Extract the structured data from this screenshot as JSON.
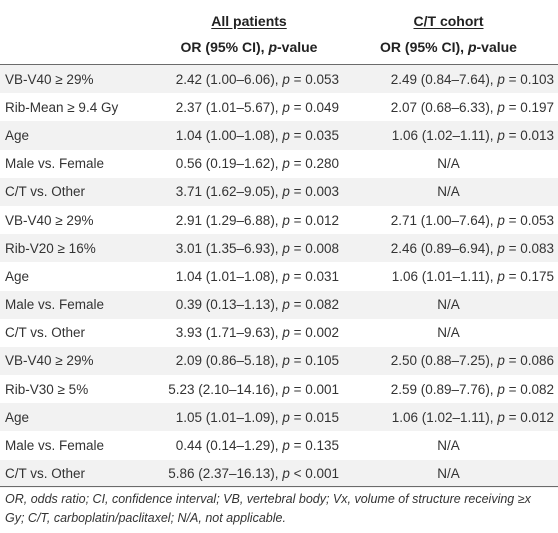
{
  "header": {
    "group1": "All patients",
    "group2": "C/T cohort",
    "col_label_prefix": "OR (95% CI), ",
    "col_label_pvalue": "p",
    "col_label_suffix": "-value"
  },
  "rows": [
    {
      "variable": "VB-V40 ≥ 29%",
      "all": "2.42 (1.00–6.06), p = 0.053",
      "ct": "2.49 (0.84–7.64), p = 0.103"
    },
    {
      "variable": "Rib-Mean ≥ 9.4 Gy",
      "all": "2.37 (1.01–5.67), p = 0.049",
      "ct": "2.07 (0.68–6.33), p = 0.197"
    },
    {
      "variable": "Age",
      "all": "1.04 (1.00–1.08), p = 0.035",
      "ct": "1.06 (1.02–1.11), p = 0.013"
    },
    {
      "variable": "Male vs. Female",
      "all": "0.56 (0.19–1.62), p = 0.280",
      "ct": "N/A"
    },
    {
      "variable": "C/T vs. Other",
      "all": "3.71 (1.62–9.05), p = 0.003",
      "ct": "N/A"
    },
    {
      "variable": "VB-V40 ≥ 29%",
      "all": "2.91 (1.29–6.88), p = 0.012",
      "ct": "2.71 (1.00–7.64), p = 0.053"
    },
    {
      "variable": "Rib-V20 ≥ 16%",
      "all": "3.01 (1.35–6.93), p = 0.008",
      "ct": "2.46 (0.89–6.94), p = 0.083"
    },
    {
      "variable": "Age",
      "all": "1.04 (1.01–1.08), p = 0.031",
      "ct": "1.06 (1.01–1.11), p = 0.175"
    },
    {
      "variable": "Male vs. Female",
      "all": "0.39 (0.13–1.13), p = 0.082",
      "ct": "N/A"
    },
    {
      "variable": "C/T vs. Other",
      "all": "3.93 (1.71–9.63), p = 0.002",
      "ct": "N/A"
    },
    {
      "variable": "VB-V40 ≥ 29%",
      "all": "2.09 (0.86–5.18), p = 0.105",
      "ct": "2.50 (0.88–7.25), p = 0.086"
    },
    {
      "variable": "Rib-V30 ≥ 5%",
      "all": "5.23 (2.10–14.16), p = 0.001",
      "ct": "2.59 (0.89–7.76), p = 0.082"
    },
    {
      "variable": "Age",
      "all": "1.05 (1.01–1.09), p = 0.015",
      "ct": "1.06 (1.02–1.11), p = 0.012"
    },
    {
      "variable": "Male vs. Female",
      "all": "0.44 (0.14–1.29), p = 0.135",
      "ct": "N/A"
    },
    {
      "variable": "C/T vs. Other",
      "all": "5.86 (2.37–16.13), p < 0.001",
      "ct": "N/A"
    }
  ],
  "footnote": "OR, odds ratio; CI, confidence interval; VB, vertebral body; Vx, volume of structure receiving ≥x Gy; C/T, carboplatin/paclitaxel; N/A, not applicable."
}
